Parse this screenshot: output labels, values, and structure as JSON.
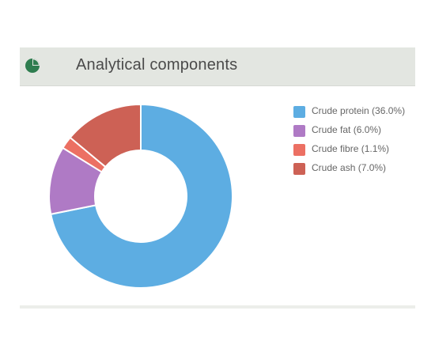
{
  "panel": {
    "title": "Analytical components",
    "icon": "pie-chart-icon",
    "icon_color": "#2e7d4f"
  },
  "chart_data": {
    "type": "pie",
    "categories": [
      "Crude protein",
      "Crude fat",
      "Crude fibre",
      "Crude ash"
    ],
    "legend_labels": [
      "Crude protein (36.0%)",
      "Crude fat (6.0%)",
      "Crude fibre (1.1%)",
      "Crude ash (7.0%)"
    ],
    "values": [
      36.0,
      6.0,
      1.1,
      7.0
    ],
    "colors": [
      "#5dade2",
      "#af7ac5",
      "#ec7063",
      "#cd6155"
    ],
    "donut": true,
    "legend_position": "right"
  }
}
